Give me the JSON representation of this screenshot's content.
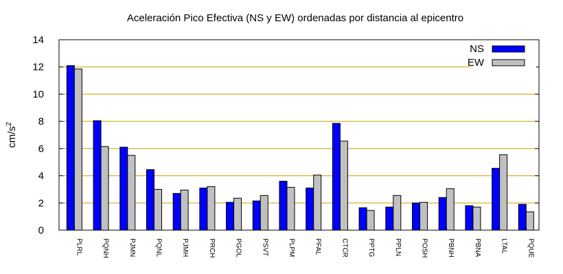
{
  "chart_data": {
    "type": "bar",
    "title": "Aceleración Pico Efectiva (NS y EW) ordenadas por distancia al epicentro",
    "xlabel": "",
    "ylabel": "cm/s",
    "ylabel_superscript": "2",
    "ylim": [
      0,
      14
    ],
    "yticks": [
      0,
      2,
      4,
      6,
      8,
      10,
      12,
      14
    ],
    "grid": "horizontal",
    "legend_position": "top-right",
    "categories": [
      "PLRL",
      "PQNH",
      "PJMN",
      "PQNL",
      "PJMH",
      "PRCH",
      "PGOL",
      "PSVT",
      "PLPM",
      "PFAL",
      "CTCR",
      "PPTG",
      "PPLN",
      "POSH",
      "PBNH",
      "PBNA",
      "LTAL",
      "PQUE"
    ],
    "series": [
      {
        "name": "NS",
        "color": "#0000ff",
        "values": [
          12.1,
          8.05,
          6.1,
          4.45,
          2.7,
          3.1,
          2.05,
          2.15,
          3.6,
          3.1,
          7.85,
          1.65,
          1.7,
          2.0,
          2.4,
          1.8,
          4.55,
          1.9
        ]
      },
      {
        "name": "EW",
        "color": "#c0c0c0",
        "values": [
          11.85,
          6.15,
          5.5,
          3.0,
          2.95,
          3.2,
          2.35,
          2.55,
          3.15,
          4.05,
          6.55,
          1.45,
          2.55,
          2.05,
          3.05,
          1.7,
          5.55,
          1.35
        ]
      }
    ],
    "colors": {
      "grid": "#c8a000",
      "axis": "#000000",
      "bar_edge": "#000000"
    }
  }
}
